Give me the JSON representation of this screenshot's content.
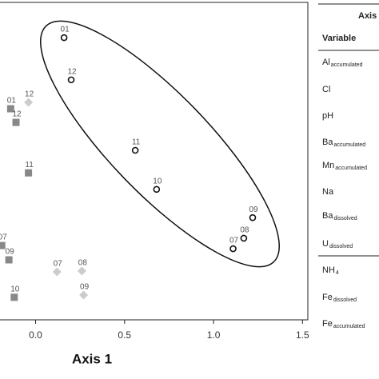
{
  "chart_data": {
    "type": "scatter",
    "xlabel": "Axis 1",
    "xlim": [
      -0.2,
      1.53
    ],
    "ylim": [
      0,
      100
    ],
    "xticks": [
      {
        "value": 0,
        "label": "0.0"
      },
      0.5,
      {
        "value": 1,
        "label": "1.0"
      },
      1.5
    ],
    "series": [
      {
        "marker": "circle",
        "color": "#111111",
        "labels": [
          "01",
          "12",
          "11",
          "10",
          "09",
          "08",
          "07"
        ],
        "x": [
          0.16,
          0.2,
          0.56,
          0.68,
          1.22,
          1.17,
          1.11
        ],
        "values": [
          88.9,
          75.6,
          53.4,
          41.1,
          32.2,
          25.7,
          22.4
        ]
      },
      {
        "marker": "square",
        "color": "#888888",
        "labels": [
          "01",
          "12",
          "11",
          "07",
          "09",
          "10"
        ],
        "x": [
          -0.14,
          -0.11,
          -0.04,
          -0.19,
          -0.15,
          -0.12
        ],
        "values": [
          66.5,
          62.2,
          46.3,
          23.4,
          18.9,
          7.1
        ]
      },
      {
        "marker": "diamond",
        "color": "#cccccc",
        "labels": [
          "12",
          "07",
          "08",
          "09"
        ],
        "x": [
          -0.04,
          0.12,
          0.26,
          0.27
        ],
        "values": [
          68.5,
          15.1,
          15.4,
          7.8
        ]
      }
    ]
  },
  "table": {
    "header": [
      "Axis",
      "Variable"
    ],
    "rows": [
      {
        "base": "Al",
        "sub": "accumulated"
      },
      {
        "base": "Cl",
        "sub": null
      },
      {
        "base": "pH",
        "sub": null
      },
      {
        "base": "Ba",
        "sub": "accumulated"
      },
      {
        "base": "Mn",
        "sub": "accumulated"
      },
      {
        "base": "Na",
        "sub": null
      },
      {
        "base": "Ba",
        "sub": "dissolved"
      },
      {
        "base": "U",
        "sub": "dissolved"
      },
      {
        "base": "NH",
        "sub": "4"
      },
      {
        "base": "Fe",
        "sub": "dissolved"
      },
      {
        "base": "Fe",
        "sub": "accumulated"
      }
    ]
  }
}
